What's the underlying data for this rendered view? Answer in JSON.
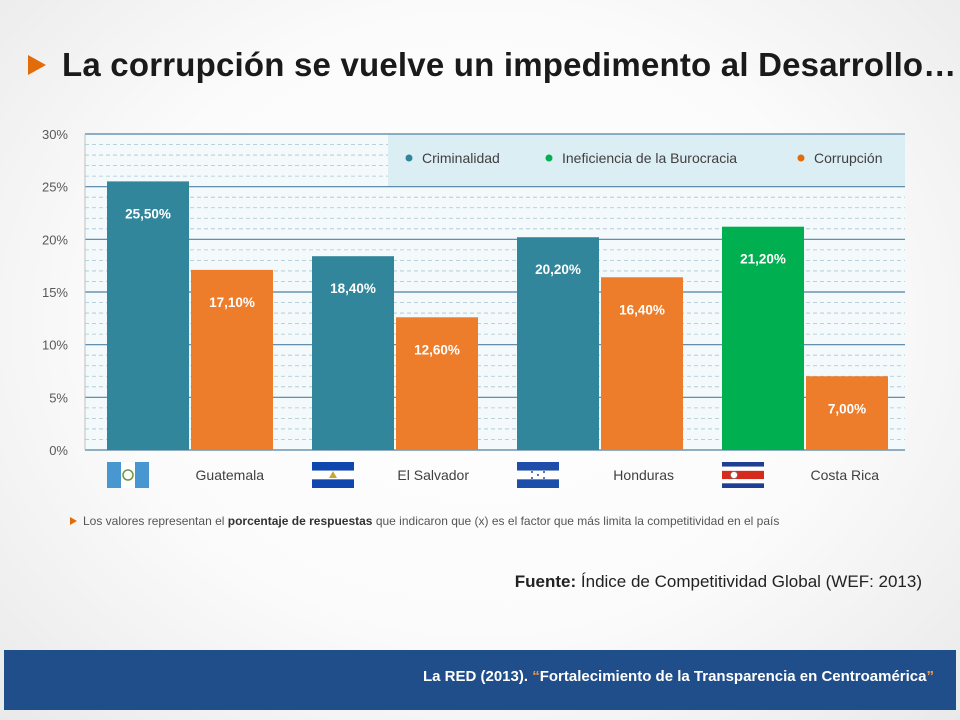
{
  "title": "La corrupción se vuelve un impedimento al Desarrollo…",
  "icons": {
    "title_bullet": "triangle-bullet-icon",
    "note_bullet": "triangle-bullet-icon"
  },
  "colors": {
    "criminalidad": "#31869b",
    "burocracia": "#00b050",
    "corrupcion": "#e36c0a",
    "footer": "#1f4e8a"
  },
  "chart_data": {
    "type": "bar",
    "title": "",
    "xlabel": "",
    "ylabel": "",
    "ylim": [
      0,
      30
    ],
    "yticks": [
      "0%",
      "5%",
      "10%",
      "15%",
      "20%",
      "25%",
      "30%"
    ],
    "categories": [
      "Guatemala",
      "El Salvador",
      "Honduras",
      "Costa Rica"
    ],
    "legend": [
      "Criminalidad",
      "Ineficiencia de la Burocracia",
      "Corrupción"
    ],
    "legend_position": "top-right",
    "bars": [
      {
        "category": "Guatemala",
        "series": "Criminalidad",
        "value": 25.5,
        "label": "25,50%"
      },
      {
        "category": "Guatemala",
        "series": "Corrupción",
        "value": 17.1,
        "label": "17,10%"
      },
      {
        "category": "El Salvador",
        "series": "Criminalidad",
        "value": 18.4,
        "label": "18,40%"
      },
      {
        "category": "El Salvador",
        "series": "Corrupción",
        "value": 12.6,
        "label": "12,60%"
      },
      {
        "category": "Honduras",
        "series": "Criminalidad",
        "value": 20.2,
        "label": "20,20%"
      },
      {
        "category": "Honduras",
        "series": "Corrupción",
        "value": 16.4,
        "label": "16,40%"
      },
      {
        "category": "Costa Rica",
        "series": "Ineficiencia de la Burocracia",
        "value": 21.2,
        "label": "21,20%"
      },
      {
        "category": "Costa Rica",
        "series": "Corrupción",
        "value": 7.0,
        "label": "7,00%"
      }
    ]
  },
  "note": {
    "before": "Los valores representan el ",
    "bold": "porcentaje de respuestas",
    "after": " que indicaron que (x) es el factor que más limita la competitividad en el país"
  },
  "source": {
    "label": "Fuente:",
    "text": " Índice de Competitividad Global (WEF: 2013)"
  },
  "footer": {
    "prefix": "La RED (2013). ",
    "open_quote": "“",
    "title": "Fortalecimiento de la Transparencia en Centroamérica",
    "close_quote": "”"
  }
}
